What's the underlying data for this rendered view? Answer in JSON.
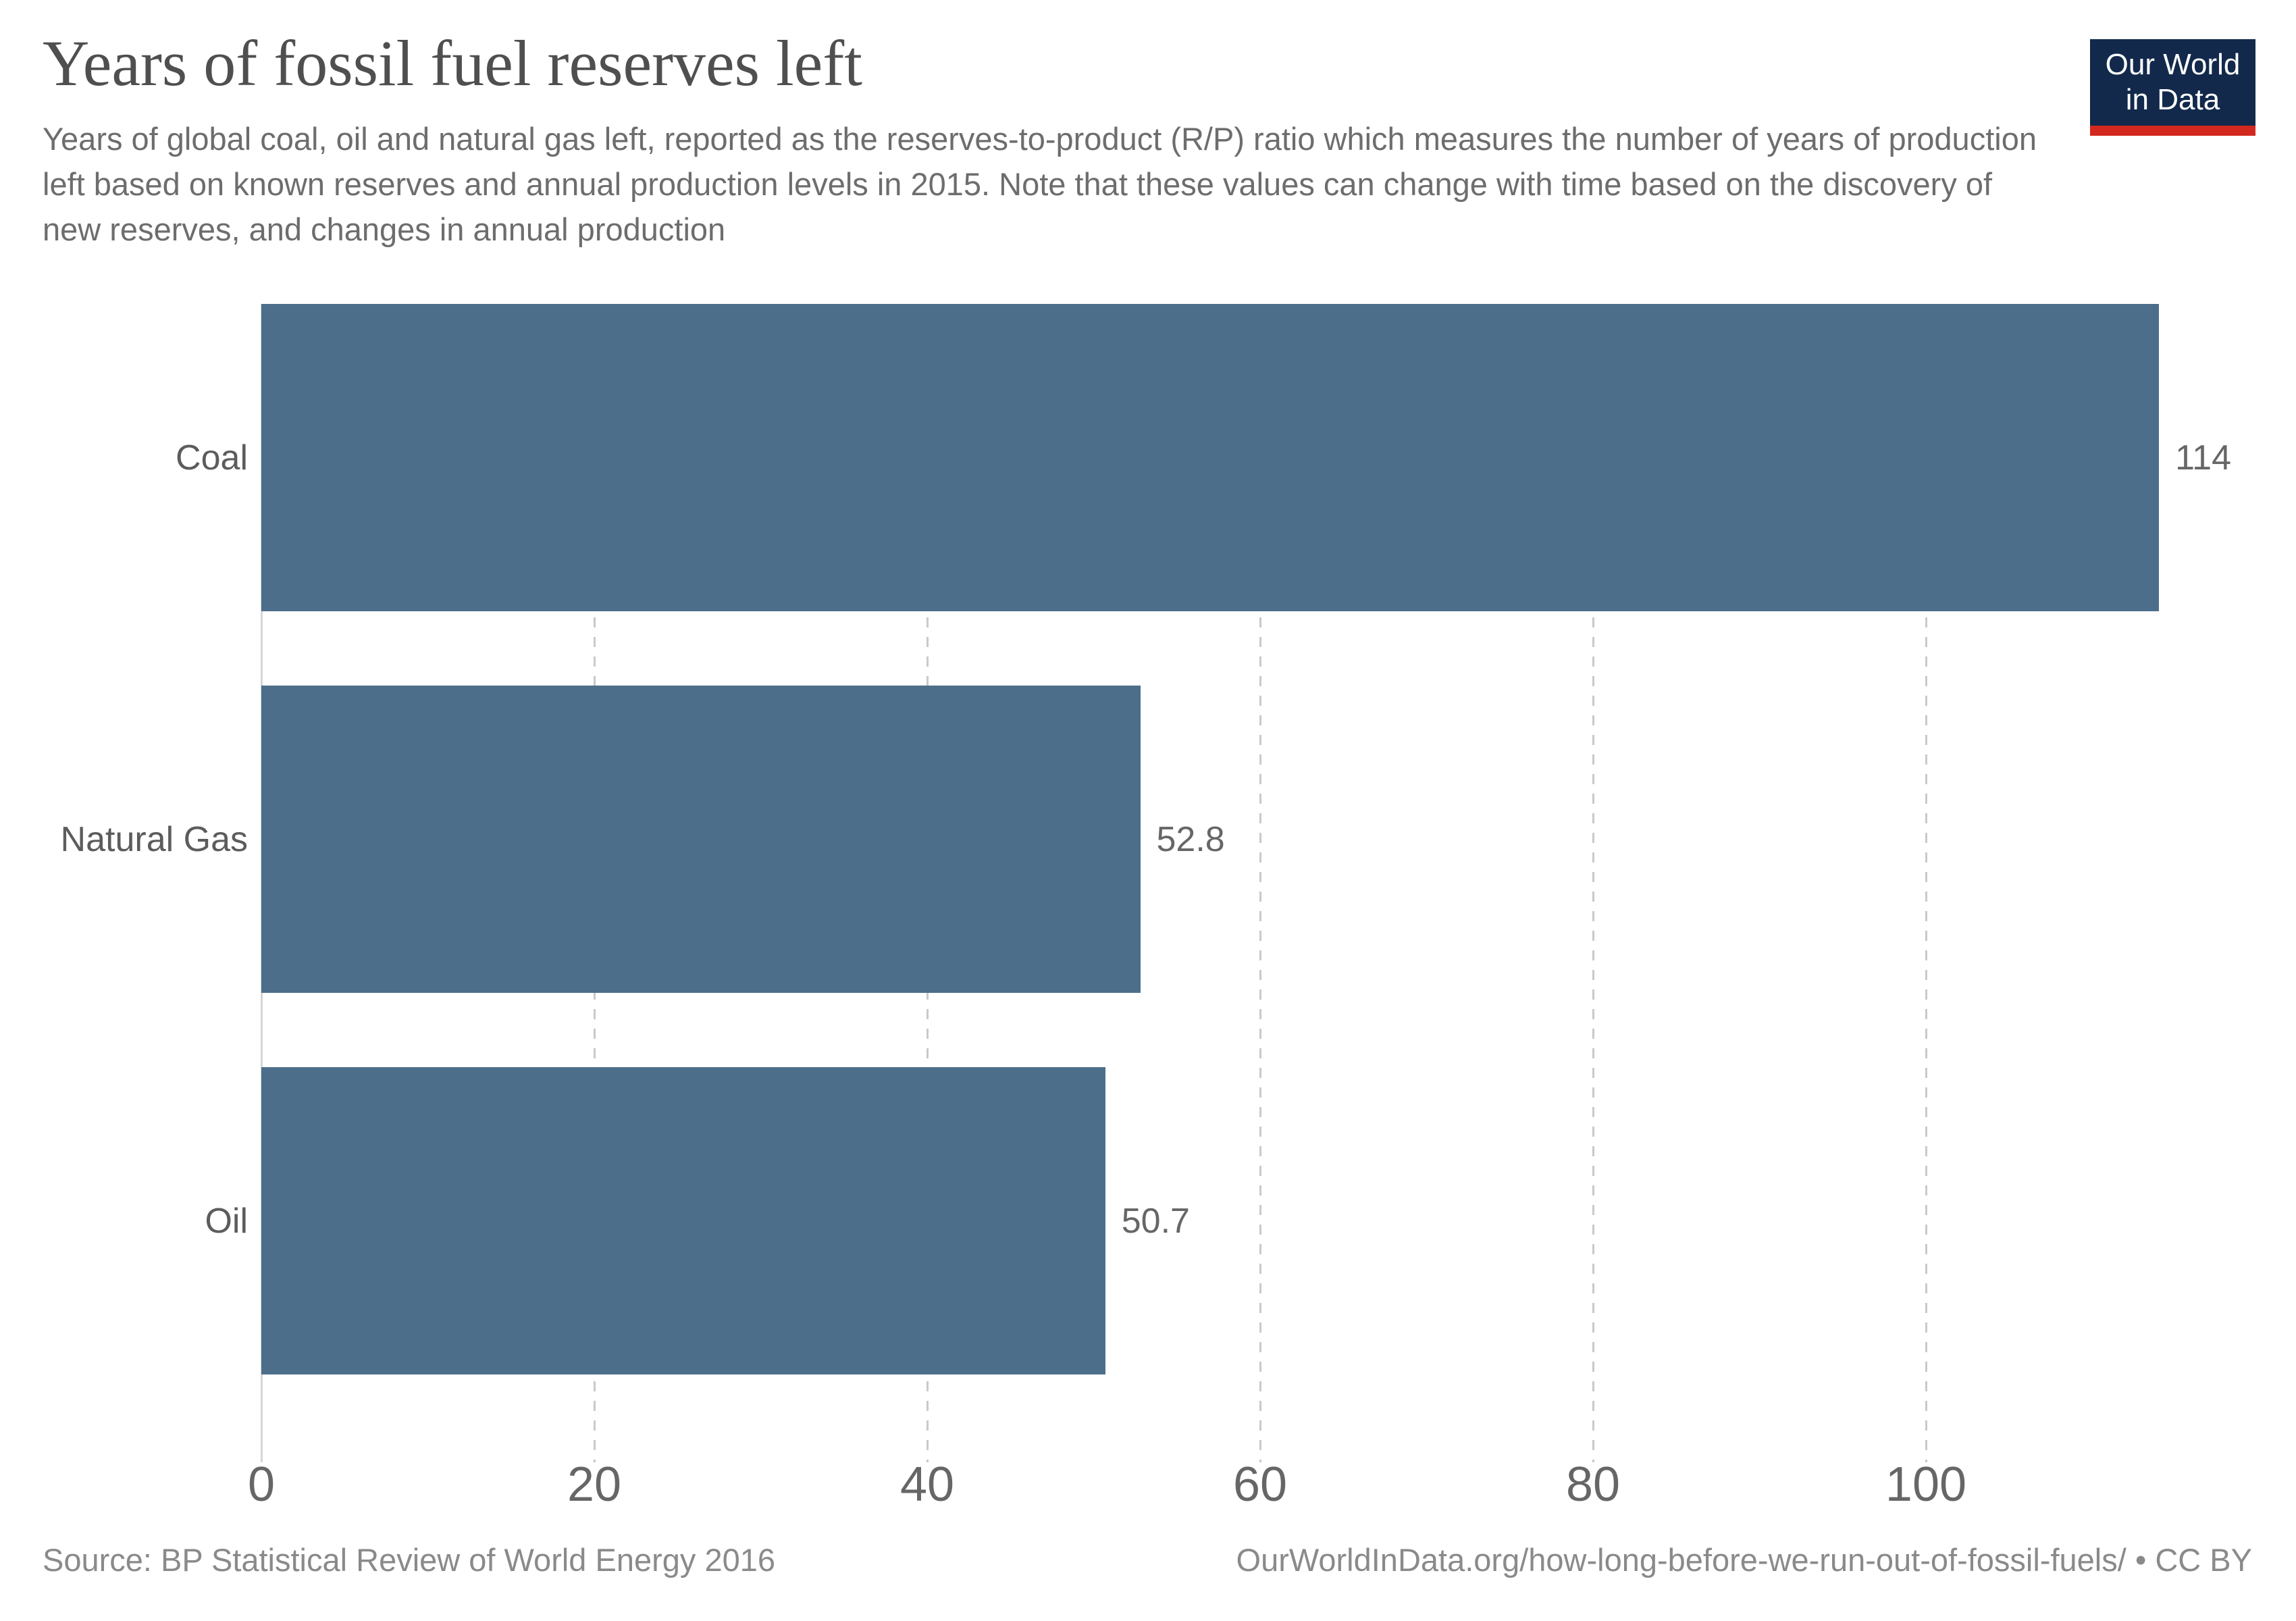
{
  "header": {
    "title": "Years of fossil fuel reserves left",
    "subtitle": "Years of global coal, oil and natural gas left, reported as the reserves-to-product (R/P) ratio which measures the number of years of production left based on known reserves and annual production levels in 2015. Note that these values can change with time based on the discovery of new reserves, and changes in annual production"
  },
  "logo": {
    "line1": "Our World",
    "line2": "in Data",
    "bg_color": "#12294b",
    "accent_color": "#d2281e"
  },
  "chart_data": {
    "type": "bar",
    "orientation": "horizontal",
    "title": "Years of fossil fuel reserves left",
    "categories": [
      "Coal",
      "Natural Gas",
      "Oil"
    ],
    "values": [
      114,
      52.8,
      50.7
    ],
    "value_labels": [
      "114",
      "52.8",
      "50.7"
    ],
    "xticks": [
      0,
      20,
      40,
      60,
      80,
      100
    ],
    "xlim": [
      0,
      119.6
    ],
    "xlabel": "",
    "ylabel": "",
    "grid": "vertical-dashed",
    "legend": "none",
    "bar_color": "#4d6e8b"
  },
  "footer": {
    "source": "Source: BP Statistical Review of World Energy 2016",
    "link": "OurWorldInData.org/how-long-before-we-run-out-of-fossil-fuels/ • CC BY"
  }
}
